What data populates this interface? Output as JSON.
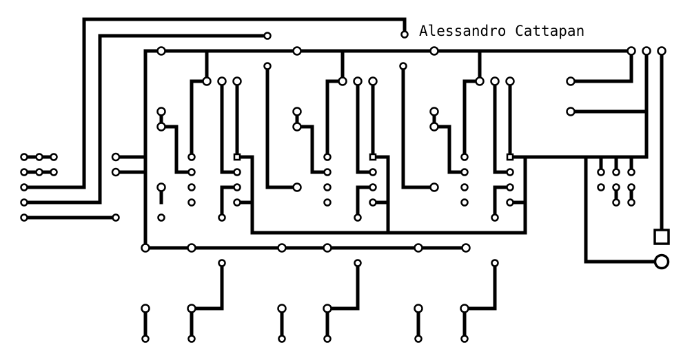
{
  "board": {
    "designer_label": "Alessandro Cattapan"
  }
}
